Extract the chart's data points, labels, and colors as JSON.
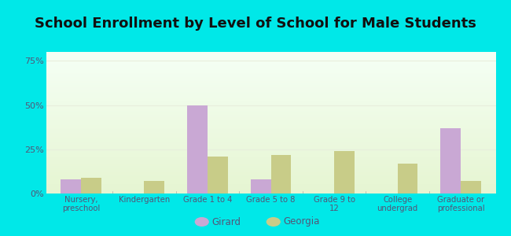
{
  "title": "School Enrollment by Level of School for Male Students",
  "categories": [
    "Nursery,\npreschool",
    "Kindergarten",
    "Grade 1 to 4",
    "Grade 5 to 8",
    "Grade 9 to\n12",
    "College\nundergrad",
    "Graduate or\nprofessional"
  ],
  "girard_values": [
    8,
    0,
    50,
    8,
    0,
    0,
    37
  ],
  "georgia_values": [
    9,
    7,
    21,
    22,
    24,
    17,
    7
  ],
  "girard_color": "#c9a8d4",
  "georgia_color": "#c8cc88",
  "background_color": "#00e8e8",
  "ylabel_ticks": [
    "0%",
    "25%",
    "50%",
    "75%"
  ],
  "ytick_values": [
    0,
    25,
    50,
    75
  ],
  "ylim": [
    0,
    80
  ],
  "title_fontsize": 13,
  "legend_labels": [
    "Girard",
    "Georgia"
  ],
  "bar_width": 0.32,
  "tick_label_color": "#555577",
  "grid_color": "#e8eedc"
}
